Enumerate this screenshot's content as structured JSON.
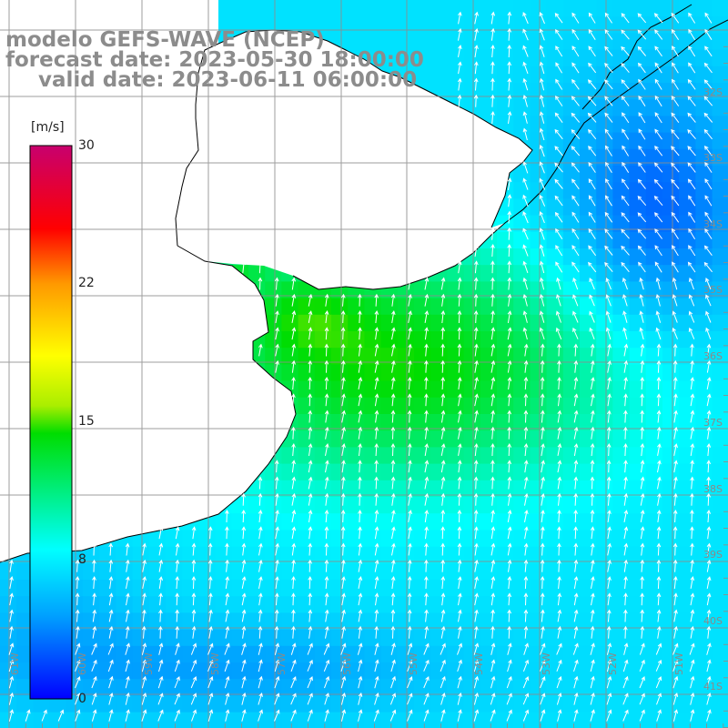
{
  "title": {
    "line1": "modelo GEFS-WAVE (NCEP)",
    "line2": "forecast date: 2023-05-30 18:00:00",
    "line3": "valid date: 2023-06-11 06:00:00"
  },
  "colorbar": {
    "unit": "[m/s]",
    "ticks": [
      "30",
      "22",
      "15",
      "8",
      "0"
    ],
    "tick_values": [
      30,
      22,
      15,
      8,
      0
    ],
    "range": [
      0,
      30
    ],
    "colors": [
      "#0000ff",
      "#00a0ff",
      "#00ffff",
      "#00dd00",
      "#ffff00",
      "#ff9900",
      "#ff0000",
      "#c8006e"
    ]
  },
  "grid": {
    "lat_labels": [
      "32S",
      "33S",
      "34S",
      "35S",
      "36S",
      "37S",
      "38S",
      "39S",
      "40S",
      "41S"
    ],
    "lon_labels": [
      "61W",
      "60W",
      "59W",
      "58W",
      "57W",
      "56W",
      "55W",
      "54W",
      "53W",
      "52W",
      "51W"
    ]
  },
  "colors": {
    "land": "#ffffff",
    "coast": "#000000",
    "grid": "#8c8c8c",
    "title": "#8c8c8c",
    "arrows": "#ffffff"
  }
}
